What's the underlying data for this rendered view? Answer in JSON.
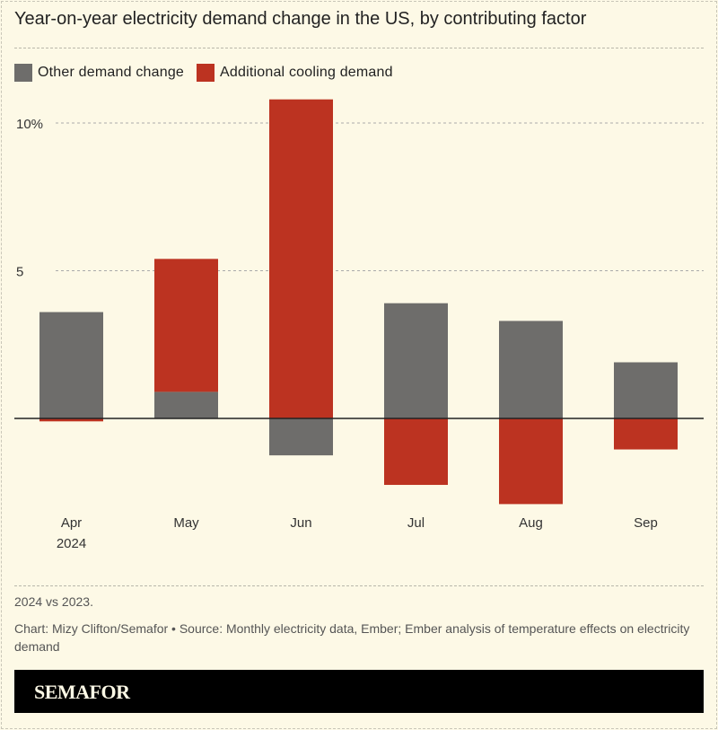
{
  "title": "Year-on-year electricity demand change in the US, by contributing factor",
  "chart_data": {
    "type": "bar",
    "stacked": true,
    "categories": [
      "Apr\n2024",
      "May",
      "Jun",
      "Jul",
      "Aug",
      "Sep"
    ],
    "series": [
      {
        "name": "Other demand change",
        "color": "#6e6d6b",
        "values": [
          3.6,
          0.9,
          -1.25,
          3.9,
          3.3,
          1.9
        ]
      },
      {
        "name": "Additional cooling demand",
        "color": "#bc3321",
        "values": [
          -0.1,
          4.5,
          10.8,
          -2.25,
          -2.9,
          -1.05
        ]
      }
    ],
    "yticks": [
      {
        "value": 10,
        "label": "10%"
      },
      {
        "value": 5,
        "label": "5"
      }
    ],
    "ylim": [
      -3.5,
      11
    ],
    "grid": true,
    "legend_position": "top-left"
  },
  "notes": {
    "subtitle_note": "2024 vs 2023.",
    "credit": "Chart: Mizy Clifton/Semafor • Source: Monthly electricity data, Ember; Ember analysis of temperature effects on electricity demand"
  },
  "brand": "SEMAFOR"
}
